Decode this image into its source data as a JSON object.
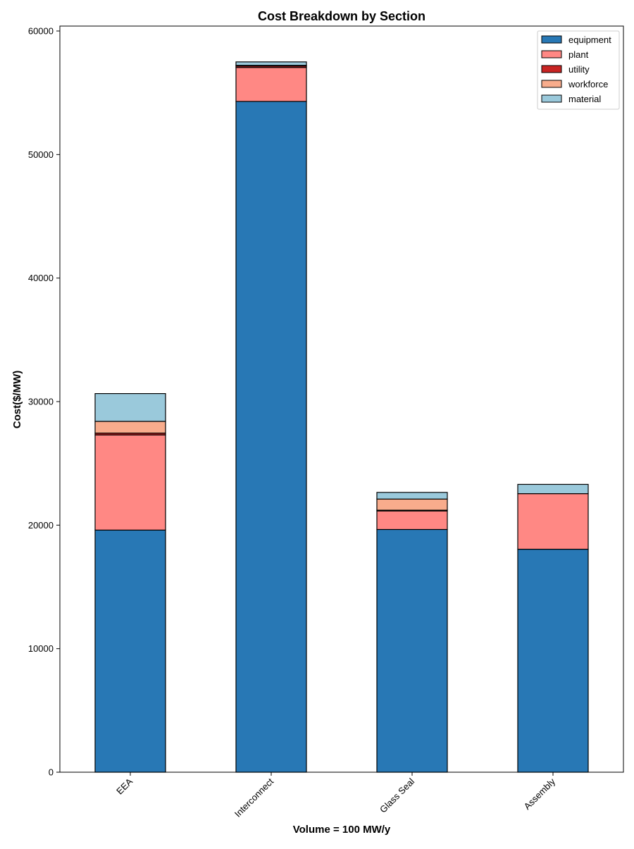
{
  "chart_data": {
    "type": "bar",
    "stacked": true,
    "title": "Cost Breakdown by Section",
    "xlabel": "Volume = 100 MW/y",
    "ylabel": "Cost($/MW)",
    "categories": [
      "EEA",
      "Interconnect",
      "Glass Seal",
      "Assembly"
    ],
    "ylim": [
      0,
      60400
    ],
    "yticks": [
      0,
      10000,
      20000,
      30000,
      40000,
      50000,
      60000
    ],
    "grid": false,
    "legend_position": "top-right",
    "series": [
      {
        "name": "equipment",
        "color": "#2878b5",
        "values": [
          19600,
          54300,
          19650,
          18050
        ]
      },
      {
        "name": "plant",
        "color": "#ff8884",
        "values": [
          7700,
          2750,
          1500,
          4500
        ]
      },
      {
        "name": "utility",
        "color": "#c82423",
        "values": [
          150,
          120,
          60,
          0
        ]
      },
      {
        "name": "workforce",
        "color": "#f8ac8c",
        "values": [
          950,
          50,
          900,
          0
        ]
      },
      {
        "name": "material",
        "color": "#9ac9db",
        "values": [
          2250,
          280,
          540,
          750
        ]
      }
    ]
  }
}
